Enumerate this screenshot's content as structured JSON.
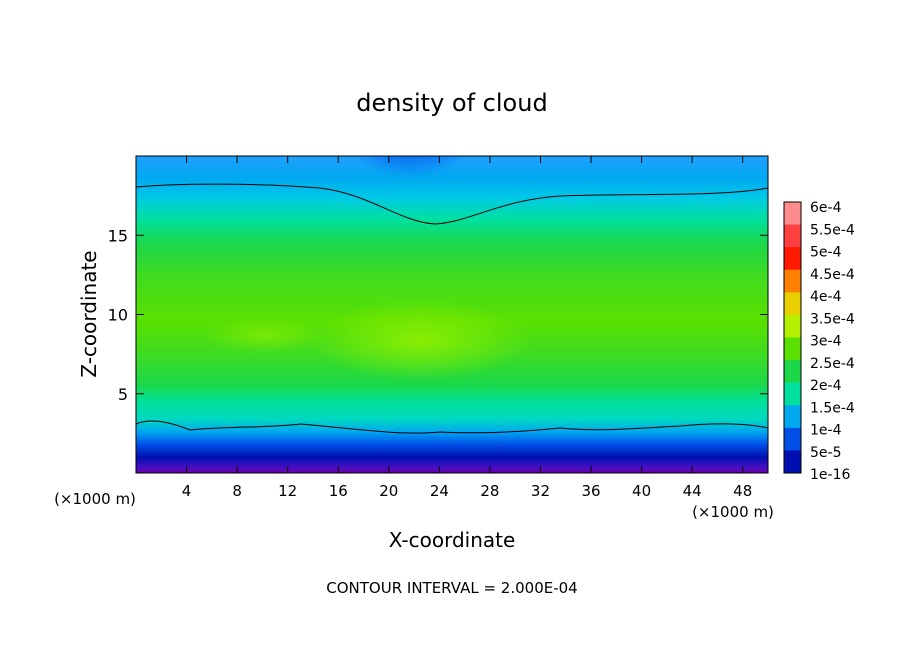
{
  "chart_data": {
    "type": "heatmap",
    "title": "density of cloud",
    "xlabel": "X-coordinate",
    "ylabel": "Z-coordinate",
    "x_unit_note_left": "(×1000 m)",
    "x_unit_note_right": "(×1000 m)",
    "xlim": [
      0,
      50
    ],
    "ylim": [
      0,
      20
    ],
    "x_ticks": [
      "4",
      "8",
      "12",
      "16",
      "20",
      "24",
      "28",
      "32",
      "36",
      "40",
      "44",
      "48"
    ],
    "x_tick_values": [
      4,
      8,
      12,
      16,
      20,
      24,
      28,
      32,
      36,
      40,
      44,
      48
    ],
    "y_ticks": [
      "5",
      "10",
      "15"
    ],
    "y_tick_values": [
      5,
      10,
      15
    ],
    "footer": "CONTOUR INTERVAL = 2.000E-04",
    "colorbar": {
      "labels": [
        "6e-4",
        "5.5e-4",
        "5e-4",
        "4.5e-4",
        "4e-4",
        "3.5e-4",
        "3e-4",
        "2.5e-4",
        "2e-4",
        "1.5e-4",
        "1e-4",
        "5e-5",
        "1e-16"
      ],
      "colors": [
        "#ff8c8c",
        "#ff4040",
        "#ff1a00",
        "#ff8000",
        "#e8d000",
        "#b4f000",
        "#5ae000",
        "#1cd848",
        "#00e0a0",
        "#00a8f0",
        "#0050e8",
        "#0010b0",
        "#7000b0"
      ]
    }
  }
}
